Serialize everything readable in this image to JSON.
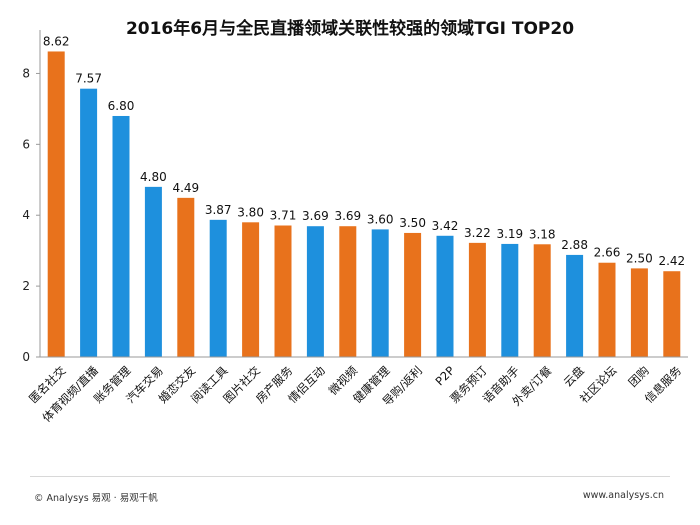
{
  "chart_data": {
    "type": "bar",
    "title": "2016年6月与全民直播领域关联性较强的领域TGI TOP20",
    "categories": [
      "匿名社交",
      "体育视频/直播",
      "账务管理",
      "汽车交易",
      "婚恋交友",
      "阅读工具",
      "图片社交",
      "房产服务",
      "情侣互动",
      "微视频",
      "健康管理",
      "导购/返利",
      "P2P",
      "票务预订",
      "语音助手",
      "外卖/订餐",
      "云盘",
      "社区论坛",
      "团购",
      "信息服务"
    ],
    "values": [
      8.62,
      7.57,
      6.8,
      4.8,
      4.49,
      3.87,
      3.8,
      3.71,
      3.69,
      3.69,
      3.6,
      3.5,
      3.42,
      3.22,
      3.19,
      3.18,
      2.88,
      2.66,
      2.5,
      2.42
    ],
    "value_labels": [
      "8.62",
      "7.57",
      "6.80",
      "4.80",
      "4.49",
      "3.87",
      "3.80",
      "3.71",
      "3.69",
      "3.69",
      "3.60",
      "3.50",
      "3.42",
      "3.22",
      "3.19",
      "3.18",
      "2.88",
      "2.66",
      "2.50",
      "2.42"
    ],
    "bar_colors": [
      "#E8721C",
      "#1E90DD",
      "#1E90DD",
      "#1E90DD",
      "#E8721C",
      "#1E90DD",
      "#E8721C",
      "#E8721C",
      "#1E90DD",
      "#E8721C",
      "#1E90DD",
      "#E8721C",
      "#1E90DD",
      "#E8721C",
      "#1E90DD",
      "#E8721C",
      "#1E90DD",
      "#E8721C",
      "#E8721C",
      "#E8721C"
    ],
    "ylim": [
      0,
      9
    ],
    "yticks": [
      0,
      2,
      4,
      6,
      8
    ],
    "xlabel": "",
    "ylabel": "",
    "grid": false
  },
  "footer": {
    "left": "© Analysys 易观 · 易观千帆",
    "right": "www.analysys.cn"
  },
  "colors": {
    "orange": "#E8721C",
    "blue": "#1E90DD",
    "axis": "#9a9a9a"
  }
}
